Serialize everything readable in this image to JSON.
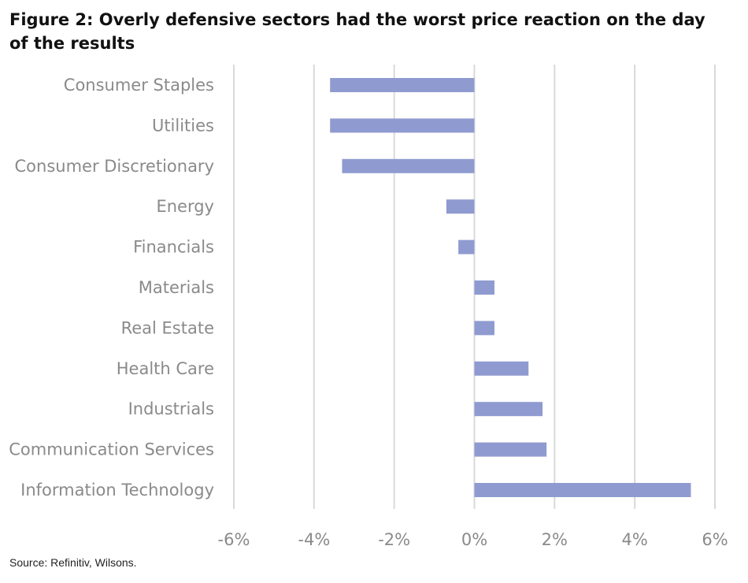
{
  "figure": {
    "title": "Figure 2: Overly defensive sectors had the worst price reaction on the day of the results",
    "source": "Source: Refinitiv, Wilsons."
  },
  "chart_data": {
    "type": "bar",
    "orientation": "horizontal",
    "title": "Figure 2: Overly defensive sectors had the worst price reaction on the day of the results",
    "xlabel": "",
    "ylabel": "",
    "categories": [
      "Consumer Staples",
      "Utilities",
      "Consumer Discretionary",
      "Energy",
      "Financials",
      "Materials",
      "Real Estate",
      "Health Care",
      "Industrials",
      "Communication Services",
      "Information Technology"
    ],
    "values": [
      -3.6,
      -3.6,
      -3.3,
      -0.7,
      -0.4,
      0.5,
      0.5,
      1.35,
      1.7,
      1.8,
      5.4
    ],
    "value_unit": "%",
    "xlim": [
      -6,
      6
    ],
    "xticks": [
      -6,
      -4,
      -2,
      0,
      2,
      4,
      6
    ],
    "xtick_labels": [
      "-6%",
      "-4%",
      "-2%",
      "0%",
      "2%",
      "4%",
      "6%"
    ],
    "grid": "vertical",
    "legend": "none",
    "bar_color": "#8f9bd0",
    "grid_color": "#d9d9d9"
  }
}
